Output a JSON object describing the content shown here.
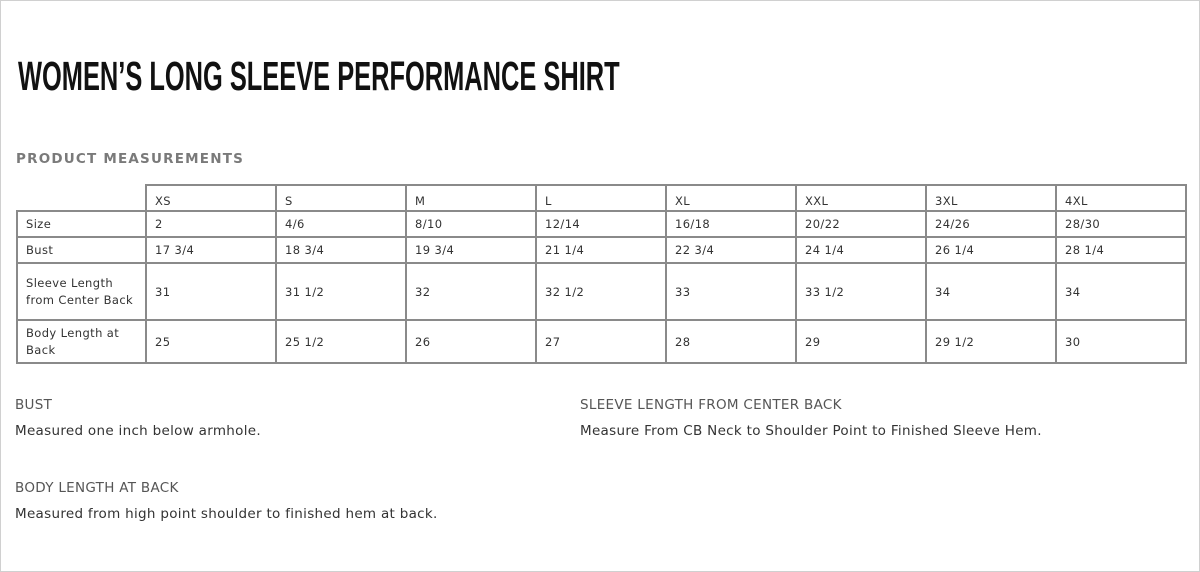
{
  "title": "WOMEN’S LONG SLEEVE PERFORMANCE SHIRT",
  "section": "PRODUCT MEASUREMENTS",
  "table": {
    "columns": [
      "XS",
      "S",
      "M",
      "L",
      "XL",
      "XXL",
      "3XL",
      "4XL"
    ],
    "rows": [
      {
        "label": "Size",
        "values": [
          "2",
          "4/6",
          "8/10",
          "12/14",
          "16/18",
          "20/22",
          "24/26",
          "28/30"
        ]
      },
      {
        "label": "Bust",
        "values": [
          "17 3/4",
          "18 3/4",
          "19 3/4",
          "21 1/4",
          "22 3/4",
          "24 1/4",
          "26 1/4",
          "28 1/4"
        ]
      },
      {
        "label": "Sleeve Length from Center Back",
        "values": [
          "31",
          "31 1/2",
          "32",
          "32 1/2",
          "33",
          "33 1/2",
          "34",
          "34"
        ]
      },
      {
        "label": "Body Length at Back",
        "values": [
          "25",
          "25 1/2",
          "26",
          "27",
          "28",
          "29",
          "29 1/2",
          "30"
        ]
      }
    ]
  },
  "notes": [
    {
      "heading": "BUST",
      "text": "Measured one inch below armhole."
    },
    {
      "heading": "SLEEVE LENGTH FROM CENTER BACK",
      "text": "Measure From CB Neck to Shoulder Point to Finished Sleeve Hem."
    },
    {
      "heading": "BODY LENGTH AT BACK",
      "text": "Measured from high point shoulder to finished hem at back."
    }
  ]
}
